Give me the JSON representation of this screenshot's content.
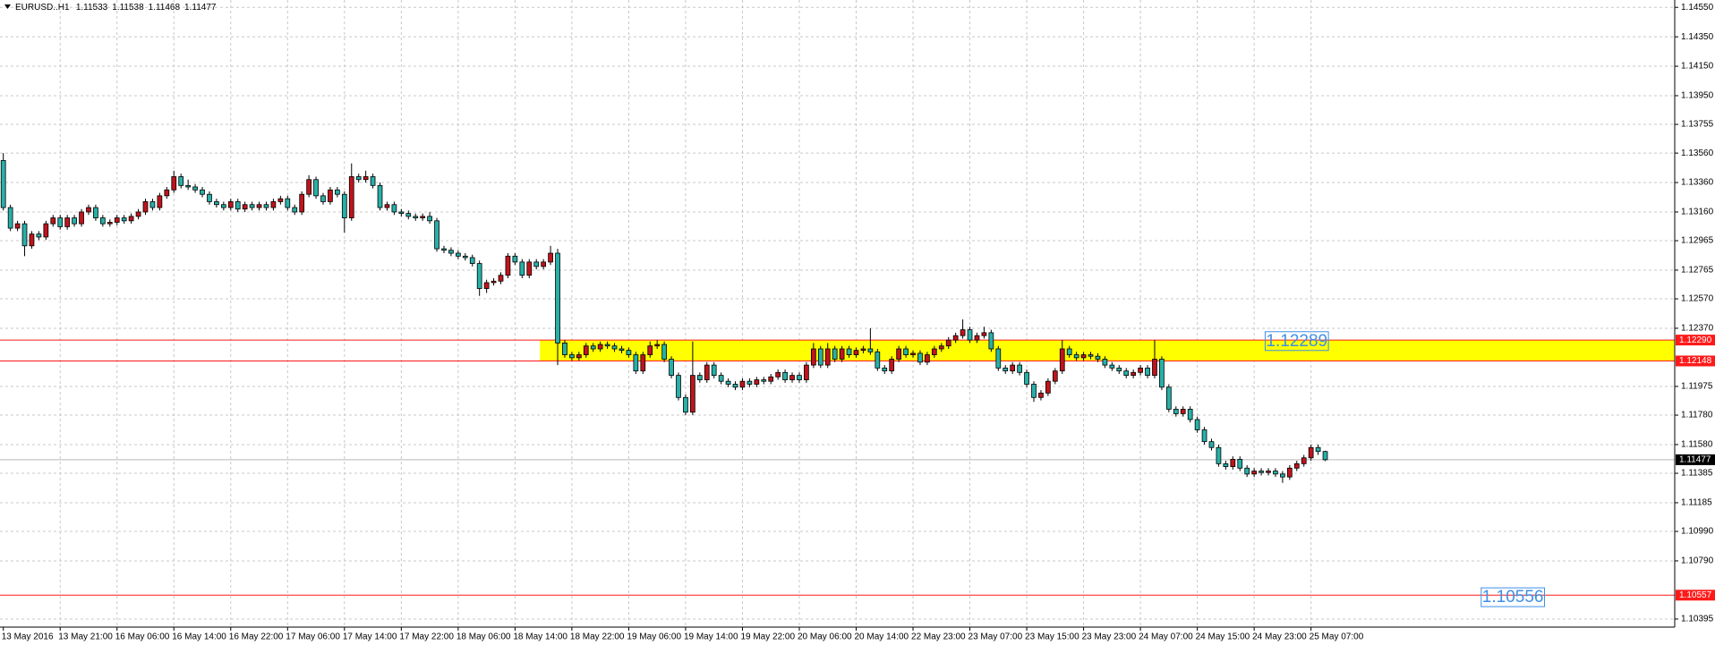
{
  "chart_data": {
    "type": "candlestick",
    "symbol": "EURUSD..H1",
    "up_color": "#c0141c",
    "down_color": "#27b0a8",
    "grid": true,
    "ylim": [
      1.1034,
      1.146
    ],
    "yticks": [
      {
        "value": 1.1455,
        "label": "1.14550"
      },
      {
        "value": 1.1435,
        "label": "1.14350"
      },
      {
        "value": 1.1415,
        "label": "1.14150"
      },
      {
        "value": 1.1395,
        "label": "1.13950"
      },
      1.13755,
      {
        "value": 1.1356,
        "label": "1.13560"
      },
      {
        "value": 1.1336,
        "label": "1.13360"
      },
      {
        "value": 1.1316,
        "label": "1.13160"
      },
      1.12965,
      1.12765,
      {
        "value": 1.1257,
        "label": "1.12570"
      },
      {
        "value": 1.1237,
        "label": "1.12370"
      },
      1.11975,
      {
        "value": 1.1178,
        "label": "1.11780"
      },
      {
        "value": 1.1158,
        "label": "1.11580"
      },
      1.11385,
      1.11185,
      {
        "value": 1.1099,
        "label": "1.10990"
      },
      {
        "value": 1.1079,
        "label": "1.10790"
      },
      1.10395
    ],
    "xticks": [
      {
        "value": 0,
        "label": "13 May 2016"
      },
      {
        "value": 8,
        "label": "13 May 21:00"
      },
      {
        "value": 16,
        "label": "16 May 06:00"
      },
      {
        "value": 24,
        "label": "16 May 14:00"
      },
      {
        "value": 32,
        "label": "16 May 22:00"
      },
      {
        "value": 40,
        "label": "17 May 06:00"
      },
      {
        "value": 48,
        "label": "17 May 14:00"
      },
      {
        "value": 56,
        "label": "17 May 22:00"
      },
      {
        "value": 64,
        "label": "18 May 06:00"
      },
      {
        "value": 72,
        "label": "18 May 14:00"
      },
      {
        "value": 80,
        "label": "18 May 22:00"
      },
      {
        "value": 88,
        "label": "19 May 06:00"
      },
      {
        "value": 96,
        "label": "19 May 14:00"
      },
      {
        "value": 104,
        "label": "19 May 22:00"
      },
      {
        "value": 112,
        "label": "20 May 06:00"
      },
      {
        "value": 120,
        "label": "20 May 14:00"
      },
      {
        "value": 128,
        "label": "22 May 23:00"
      },
      {
        "value": 136,
        "label": "23 May 07:00"
      },
      {
        "value": 144,
        "label": "23 May 15:00"
      },
      {
        "value": 152,
        "label": "23 May 23:00"
      },
      {
        "value": 160,
        "label": "24 May 07:00"
      },
      {
        "value": 168,
        "label": "24 May 15:00"
      },
      {
        "value": 176,
        "label": "24 May 23:00"
      },
      {
        "value": 184,
        "label": "25 May 07:00"
      }
    ],
    "zone": {
      "start": 75.5,
      "top": 1.1229,
      "bottom": 1.12148,
      "color": "#ffff00"
    },
    "hlines": [
      {
        "value": 1.1229,
        "label": "1.12290",
        "color": "#ff1a1a"
      },
      {
        "value": 1.12148,
        "label": "1.12148",
        "color": "#ff1a1a"
      },
      {
        "value": 1.10557,
        "label": "1.10557",
        "color": "#ff1a1a"
      }
    ],
    "annotations": [
      {
        "text": "1.12289",
        "bar": 182,
        "price": 1.1228
      },
      {
        "text": "1.10556",
        "bar": 212.4,
        "price": 1.1054
      }
    ],
    "ohlc": [
      [
        1.1351,
        1.1356,
        1.1317,
        1.1319
      ],
      [
        1.1319,
        1.1321,
        1.1303,
        1.1305
      ],
      [
        1.1305,
        1.131,
        1.1303,
        1.1308
      ],
      [
        1.1308,
        1.131,
        1.1286,
        1.1293
      ],
      [
        1.1293,
        1.1303,
        1.1291,
        1.1301
      ],
      [
        1.1301,
        1.1303,
        1.1297,
        1.1299
      ],
      [
        1.1299,
        1.131,
        1.1297,
        1.1308
      ],
      [
        1.1308,
        1.1314,
        1.1306,
        1.1312
      ],
      [
        1.1312,
        1.1314,
        1.1304,
        1.1306
      ],
      [
        1.1306,
        1.1314,
        1.1304,
        1.1312
      ],
      [
        1.1312,
        1.1314,
        1.1306,
        1.1308
      ],
      [
        1.1308,
        1.1318,
        1.1306,
        1.1316
      ],
      [
        1.1316,
        1.1321,
        1.1314,
        1.1319
      ],
      [
        1.1319,
        1.1321,
        1.131,
        1.1312
      ],
      [
        1.1312,
        1.1314,
        1.1306,
        1.1308
      ],
      [
        1.1308,
        1.1311,
        1.1306,
        1.1309
      ],
      [
        1.1309,
        1.1314,
        1.1307,
        1.1312
      ],
      [
        1.1312,
        1.1314,
        1.1308,
        1.131
      ],
      [
        1.131,
        1.1315,
        1.1308,
        1.1313
      ],
      [
        1.1313,
        1.1318,
        1.1311,
        1.1316
      ],
      [
        1.1316,
        1.1325,
        1.1314,
        1.1323
      ],
      [
        1.1323,
        1.1325,
        1.1317,
        1.1319
      ],
      [
        1.1319,
        1.1329,
        1.1317,
        1.1327
      ],
      [
        1.1327,
        1.1333,
        1.1325,
        1.1331
      ],
      [
        1.1331,
        1.1344,
        1.1329,
        1.134
      ],
      [
        1.134,
        1.1342,
        1.1332,
        1.1334
      ],
      [
        1.1334,
        1.1338,
        1.1331,
        1.1333
      ],
      [
        1.1333,
        1.1335,
        1.1329,
        1.1331
      ],
      [
        1.1331,
        1.1333,
        1.1326,
        1.1328
      ],
      [
        1.1328,
        1.133,
        1.1321,
        1.1323
      ],
      [
        1.1323,
        1.1325,
        1.1319,
        1.1321
      ],
      [
        1.1321,
        1.1323,
        1.1317,
        1.1319
      ],
      [
        1.1319,
        1.1325,
        1.1317,
        1.1323
      ],
      [
        1.1323,
        1.1325,
        1.1316,
        1.1318
      ],
      [
        1.1318,
        1.1323,
        1.1316,
        1.1321
      ],
      [
        1.1321,
        1.1323,
        1.1317,
        1.1319
      ],
      [
        1.1319,
        1.1323,
        1.1317,
        1.1321
      ],
      [
        1.1321,
        1.1323,
        1.1317,
        1.1319
      ],
      [
        1.1319,
        1.1325,
        1.1317,
        1.1323
      ],
      [
        1.1323,
        1.1327,
        1.1321,
        1.1325
      ],
      [
        1.1325,
        1.1327,
        1.1317,
        1.1319
      ],
      [
        1.1319,
        1.1321,
        1.1314,
        1.1316
      ],
      [
        1.1316,
        1.133,
        1.1314,
        1.1328
      ],
      [
        1.1328,
        1.1341,
        1.1326,
        1.1338
      ],
      [
        1.1338,
        1.134,
        1.1325,
        1.1327
      ],
      [
        1.1327,
        1.1329,
        1.1321,
        1.1323
      ],
      [
        1.1323,
        1.1333,
        1.1321,
        1.1331
      ],
      [
        1.1331,
        1.1333,
        1.1326,
        1.1328
      ],
      [
        1.1328,
        1.133,
        1.1302,
        1.1312
      ],
      [
        1.1312,
        1.1349,
        1.131,
        1.134
      ],
      [
        1.134,
        1.1342,
        1.1336,
        1.1338
      ],
      [
        1.1338,
        1.1344,
        1.1336,
        1.134
      ],
      [
        1.134,
        1.1342,
        1.1332,
        1.1334
      ],
      [
        1.1334,
        1.1336,
        1.1317,
        1.1319
      ],
      [
        1.1319,
        1.1323,
        1.1317,
        1.1321
      ],
      [
        1.1321,
        1.1323,
        1.1314,
        1.1316
      ],
      [
        1.1316,
        1.1318,
        1.1313,
        1.1315
      ],
      [
        1.1315,
        1.1317,
        1.1311,
        1.1313
      ],
      [
        1.1313,
        1.1315,
        1.131,
        1.1312
      ],
      [
        1.1312,
        1.1315,
        1.131,
        1.1313
      ],
      [
        1.1313,
        1.1316,
        1.1308,
        1.131
      ],
      [
        1.131,
        1.1312,
        1.1289,
        1.1291
      ],
      [
        1.1291,
        1.1293,
        1.1288,
        1.129
      ],
      [
        1.129,
        1.1292,
        1.1286,
        1.1288
      ],
      [
        1.1288,
        1.129,
        1.1284,
        1.1286
      ],
      [
        1.1286,
        1.1288,
        1.1283,
        1.1285
      ],
      [
        1.1285,
        1.1287,
        1.1279,
        1.1281
      ],
      [
        1.1281,
        1.1283,
        1.1259,
        1.1264
      ],
      [
        1.1264,
        1.127,
        1.1261,
        1.1268
      ],
      [
        1.1268,
        1.1271,
        1.1266,
        1.1269
      ],
      [
        1.1269,
        1.1275,
        1.1267,
        1.1273
      ],
      [
        1.1273,
        1.1288,
        1.1271,
        1.1286
      ],
      [
        1.1286,
        1.1288,
        1.128,
        1.1282
      ],
      [
        1.1282,
        1.1284,
        1.1271,
        1.1273
      ],
      [
        1.1273,
        1.1284,
        1.1271,
        1.1282
      ],
      [
        1.1282,
        1.1284,
        1.1277,
        1.1279
      ],
      [
        1.1279,
        1.1284,
        1.1277,
        1.1282
      ],
      [
        1.1282,
        1.1293,
        1.128,
        1.1288
      ],
      [
        1.1288,
        1.1291,
        1.1212,
        1.1227
      ],
      [
        1.1227,
        1.1229,
        1.1217,
        1.1219
      ],
      [
        1.1219,
        1.1221,
        1.1215,
        1.1217
      ],
      [
        1.1217,
        1.1221,
        1.1215,
        1.1219
      ],
      [
        1.1219,
        1.1227,
        1.1217,
        1.1225
      ],
      [
        1.1225,
        1.1227,
        1.1221,
        1.1223
      ],
      [
        1.1223,
        1.1228,
        1.1221,
        1.1226
      ],
      [
        1.1226,
        1.1228,
        1.1223,
        1.1225
      ],
      [
        1.1225,
        1.1227,
        1.1221,
        1.1223
      ],
      [
        1.1223,
        1.1225,
        1.122,
        1.1222
      ],
      [
        1.1222,
        1.1224,
        1.1217,
        1.1219
      ],
      [
        1.1219,
        1.1221,
        1.1206,
        1.1208
      ],
      [
        1.1208,
        1.1221,
        1.1206,
        1.1219
      ],
      [
        1.1219,
        1.1228,
        1.1217,
        1.1225
      ],
      [
        1.1225,
        1.1229,
        1.1223,
        1.1226
      ],
      [
        1.1226,
        1.1228,
        1.1214,
        1.1216
      ],
      [
        1.1216,
        1.1218,
        1.1203,
        1.1205
      ],
      [
        1.1205,
        1.1207,
        1.1188,
        1.119
      ],
      [
        1.119,
        1.1192,
        1.1178,
        1.118
      ],
      [
        1.118,
        1.1228,
        1.1178,
        1.1205
      ],
      [
        1.1205,
        1.1207,
        1.12,
        1.1202
      ],
      [
        1.1202,
        1.1214,
        1.12,
        1.1212
      ],
      [
        1.1212,
        1.1214,
        1.1203,
        1.1205
      ],
      [
        1.1205,
        1.1207,
        1.1199,
        1.1201
      ],
      [
        1.1201,
        1.1203,
        1.1197,
        1.1199
      ],
      [
        1.1199,
        1.1201,
        1.1195,
        1.1197
      ],
      [
        1.1197,
        1.1203,
        1.1195,
        1.1201
      ],
      [
        1.1201,
        1.1203,
        1.1197,
        1.1199
      ],
      [
        1.1199,
        1.1204,
        1.1197,
        1.1202
      ],
      [
        1.1202,
        1.1204,
        1.1199,
        1.1201
      ],
      [
        1.1201,
        1.1206,
        1.1199,
        1.1204
      ],
      [
        1.1204,
        1.1209,
        1.1202,
        1.1207
      ],
      [
        1.1207,
        1.1209,
        1.12,
        1.1202
      ],
      [
        1.1202,
        1.1207,
        1.12,
        1.1205
      ],
      [
        1.1205,
        1.1207,
        1.12,
        1.1202
      ],
      [
        1.1202,
        1.1214,
        1.12,
        1.1212
      ],
      [
        1.1212,
        1.1227,
        1.121,
        1.1223
      ],
      [
        1.1223,
        1.1225,
        1.121,
        1.1212
      ],
      [
        1.1212,
        1.1227,
        1.121,
        1.1223
      ],
      [
        1.1223,
        1.1225,
        1.1214,
        1.1216
      ],
      [
        1.1216,
        1.1225,
        1.1214,
        1.1223
      ],
      [
        1.1223,
        1.1225,
        1.1217,
        1.1219
      ],
      [
        1.1219,
        1.1224,
        1.1217,
        1.1222
      ],
      [
        1.1222,
        1.1225,
        1.122,
        1.1223
      ],
      [
        1.1223,
        1.1237,
        1.1219,
        1.1221
      ],
      [
        1.1221,
        1.1223,
        1.1208,
        1.121
      ],
      [
        1.121,
        1.1212,
        1.1206,
        1.1208
      ],
      [
        1.1208,
        1.1218,
        1.1206,
        1.1216
      ],
      [
        1.1216,
        1.1225,
        1.1214,
        1.1223
      ],
      [
        1.1223,
        1.1225,
        1.1217,
        1.1219
      ],
      [
        1.1219,
        1.1222,
        1.1217,
        1.122
      ],
      [
        1.122,
        1.1222,
        1.1212,
        1.1214
      ],
      [
        1.1214,
        1.1221,
        1.1212,
        1.1219
      ],
      [
        1.1219,
        1.1225,
        1.1217,
        1.1223
      ],
      [
        1.1223,
        1.1227,
        1.1221,
        1.1225
      ],
      [
        1.1225,
        1.1231,
        1.1223,
        1.1229
      ],
      [
        1.1229,
        1.1234,
        1.1227,
        1.1232
      ],
      [
        1.1232,
        1.1243,
        1.123,
        1.1236
      ],
      [
        1.1236,
        1.1238,
        1.1227,
        1.1229
      ],
      [
        1.1229,
        1.1234,
        1.1227,
        1.1232
      ],
      [
        1.1232,
        1.1238,
        1.123,
        1.1234
      ],
      [
        1.1234,
        1.1236,
        1.1221,
        1.1223
      ],
      [
        1.1223,
        1.1225,
        1.1208,
        1.121
      ],
      [
        1.121,
        1.1212,
        1.1206,
        1.1208
      ],
      [
        1.1208,
        1.1214,
        1.1206,
        1.1212
      ],
      [
        1.1212,
        1.1214,
        1.1205,
        1.1207
      ],
      [
        1.1207,
        1.1209,
        1.1197,
        1.1199
      ],
      [
        1.1199,
        1.1201,
        1.1187,
        1.119
      ],
      [
        1.119,
        1.1195,
        1.1188,
        1.1193
      ],
      [
        1.1193,
        1.1203,
        1.1191,
        1.1201
      ],
      [
        1.1201,
        1.121,
        1.1199,
        1.1208
      ],
      [
        1.1208,
        1.1229,
        1.1206,
        1.1223
      ],
      [
        1.1223,
        1.1225,
        1.1217,
        1.1219
      ],
      [
        1.1219,
        1.1221,
        1.1215,
        1.1217
      ],
      [
        1.1217,
        1.1221,
        1.1215,
        1.1219
      ],
      [
        1.1219,
        1.1221,
        1.1216,
        1.1218
      ],
      [
        1.1218,
        1.122,
        1.1214,
        1.1216
      ],
      [
        1.1216,
        1.1218,
        1.121,
        1.1212
      ],
      [
        1.1212,
        1.1214,
        1.1208,
        1.121
      ],
      [
        1.121,
        1.1212,
        1.1206,
        1.1208
      ],
      [
        1.1208,
        1.121,
        1.1203,
        1.1205
      ],
      [
        1.1205,
        1.1209,
        1.1203,
        1.1207
      ],
      [
        1.1207,
        1.1212,
        1.1205,
        1.121
      ],
      [
        1.121,
        1.1212,
        1.1203,
        1.1205
      ],
      [
        1.1205,
        1.1229,
        1.1203,
        1.1216
      ],
      [
        1.1216,
        1.1218,
        1.1195,
        1.1197
      ],
      [
        1.1197,
        1.1199,
        1.118,
        1.1182
      ],
      [
        1.1182,
        1.1184,
        1.1177,
        1.1179
      ],
      [
        1.1179,
        1.1184,
        1.1177,
        1.1182
      ],
      [
        1.1182,
        1.1184,
        1.1173,
        1.1175
      ],
      [
        1.1175,
        1.1177,
        1.1166,
        1.1168
      ],
      [
        1.1168,
        1.117,
        1.1158,
        1.116
      ],
      [
        1.116,
        1.1162,
        1.1154,
        1.1156
      ],
      [
        1.1156,
        1.1158,
        1.1143,
        1.1145
      ],
      [
        1.1145,
        1.1147,
        1.1141,
        1.1143
      ],
      [
        1.1143,
        1.115,
        1.1141,
        1.1148
      ],
      [
        1.1148,
        1.115,
        1.114,
        1.1142
      ],
      [
        1.1142,
        1.1144,
        1.1136,
        1.1138
      ],
      [
        1.1138,
        1.1142,
        1.1136,
        1.114
      ],
      [
        1.114,
        1.1142,
        1.1137,
        1.1139
      ],
      [
        1.1139,
        1.1142,
        1.1137,
        1.114
      ],
      [
        1.114,
        1.1142,
        1.1136,
        1.1138
      ],
      [
        1.1138,
        1.114,
        1.1132,
        1.1136
      ],
      [
        1.1136,
        1.1144,
        1.1134,
        1.1142
      ],
      [
        1.1142,
        1.1147,
        1.114,
        1.1145
      ],
      [
        1.1145,
        1.1151,
        1.1143,
        1.1149
      ],
      [
        1.1149,
        1.1158,
        1.1147,
        1.1156
      ],
      [
        1.1156,
        1.1158,
        1.1151,
        1.11533
      ],
      [
        1.11533,
        1.11538,
        1.11468,
        1.11477
      ]
    ]
  }
}
